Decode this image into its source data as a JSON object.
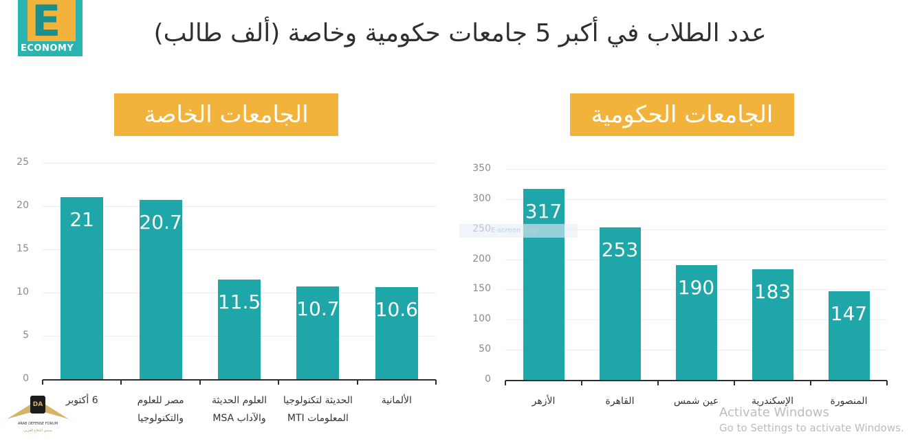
{
  "logo": {
    "letter": "E",
    "text": "ECONOMY"
  },
  "title": "عدد الطلاب في أكبر 5 جامعات حكومية وخاصة (ألف طالب)",
  "overlay_text": "E-screen Snip",
  "watermark": {
    "line1": "Activate Windows",
    "line2": "Go to Settings to activate Windows."
  },
  "forum": {
    "badge": "DA",
    "name": "ARAB DEFENSE FORUM",
    "sub": "منتدى الدفاع العربي"
  },
  "colors": {
    "bar": "#1fa6a8",
    "banner": "#f2b33c",
    "title": "#2f2f2f"
  },
  "chart_data": [
    {
      "type": "bar",
      "title": "الجامعات الخاصة",
      "categories": [
        [
          "6 أكتوبر"
        ],
        [
          "مصر للعلوم",
          "والتكنولوجيا"
        ],
        [
          "العلوم الحديثة",
          "والآداب MSA"
        ],
        [
          "الحديثة لتكنولوجيا",
          "المعلومات MTI"
        ],
        [
          "الألمانية"
        ]
      ],
      "values": [
        21,
        20.7,
        11.5,
        10.7,
        10.6
      ],
      "value_labels": [
        "21",
        "20.7",
        "11.5",
        "10.7",
        "10.6"
      ],
      "yticks": [
        "0",
        "5",
        "10",
        "15",
        "20",
        "25"
      ],
      "ylim": [
        0,
        25
      ],
      "grid": true
    },
    {
      "type": "bar",
      "title": "الجامعات الحكومية",
      "categories": [
        [
          "الأزهر"
        ],
        [
          "القاهرة"
        ],
        [
          "عين شمس"
        ],
        [
          "الإسكندرية"
        ],
        [
          "المنصورة"
        ]
      ],
      "values": [
        317,
        253,
        190,
        183,
        147
      ],
      "value_labels": [
        "317",
        "253",
        "190",
        "183",
        "147"
      ],
      "yticks": [
        "0",
        "50",
        "100",
        "150",
        "200",
        "250",
        "300",
        "350"
      ],
      "ylim": [
        0,
        350
      ],
      "grid": true
    }
  ]
}
